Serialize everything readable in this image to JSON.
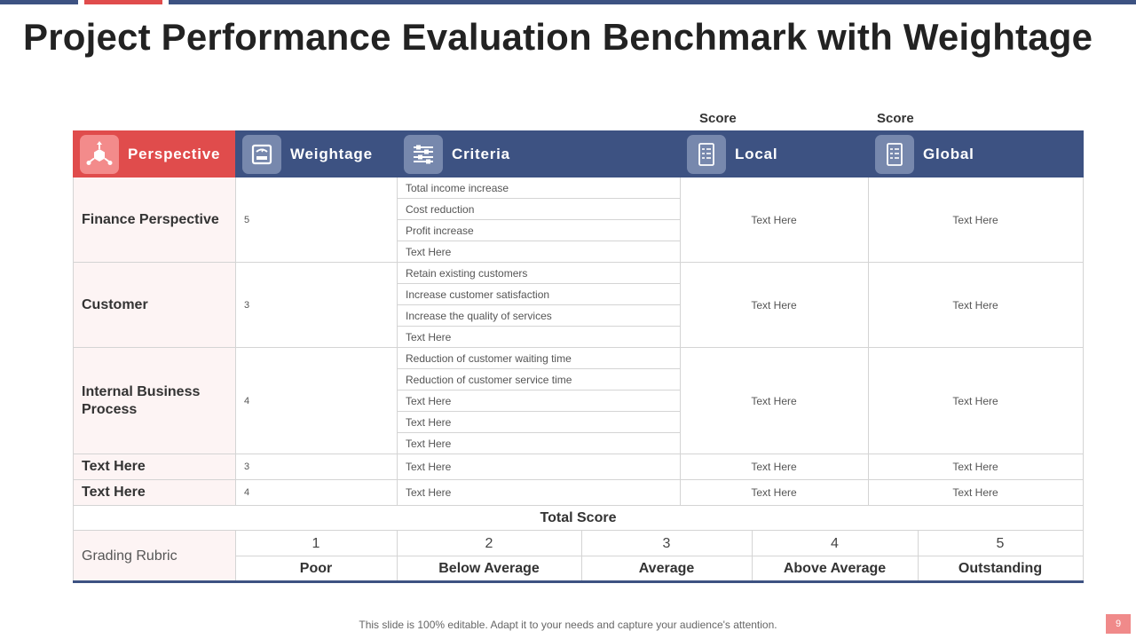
{
  "title": "Project Performance Evaluation Benchmark with Weightage",
  "score_labels": [
    "Score",
    "Score"
  ],
  "headers": {
    "perspective": "Perspective",
    "weightage": "Weightage",
    "criteria": "Criteria",
    "local": "Local",
    "global": "Global"
  },
  "groups": [
    {
      "perspective": "Finance Perspective",
      "weight": "5",
      "criteria": [
        "Total income increase",
        "Cost reduction",
        "Profit increase",
        "Text Here"
      ],
      "local": "Text Here",
      "global": "Text Here"
    },
    {
      "perspective": "Customer",
      "weight": "3",
      "criteria": [
        "Retain existing customers",
        "Increase customer satisfaction",
        "Increase the quality of services",
        "Text Here"
      ],
      "local": "Text Here",
      "global": "Text Here"
    },
    {
      "perspective": "Internal Business Process",
      "weight": "4",
      "criteria": [
        "Reduction of customer waiting time",
        "Reduction of customer service time",
        "Text Here",
        "Text Here",
        "Text Here"
      ],
      "local": "Text Here",
      "global": "Text Here"
    }
  ],
  "simple_rows": [
    {
      "perspective": "Text Here",
      "weight": "3",
      "criteria": "Text Here",
      "local": "Text Here",
      "global": "Text Here"
    },
    {
      "perspective": "Text Here",
      "weight": "4",
      "criteria": "Text Here",
      "local": "Text Here",
      "global": "Text Here"
    }
  ],
  "total_score": "Total Score",
  "rubric": {
    "label": "Grading Rubric",
    "grades": [
      {
        "num": "1",
        "name": "Poor"
      },
      {
        "num": "2",
        "name": "Below Average"
      },
      {
        "num": "3",
        "name": "Average"
      },
      {
        "num": "4",
        "name": "Above Average"
      },
      {
        "num": "5",
        "name": "Outstanding"
      }
    ]
  },
  "footer": "This slide is 100% editable. Adapt it to your needs and capture your audience's attention.",
  "page_number": "9",
  "colors": {
    "accent_red": "#e04c4c",
    "accent_blue": "#3d5282"
  },
  "icons": {
    "perspective": "hub-network-icon",
    "weightage": "scale-icon",
    "criteria": "sliders-icon",
    "local": "checklist-icon",
    "global": "checklist-icon"
  }
}
